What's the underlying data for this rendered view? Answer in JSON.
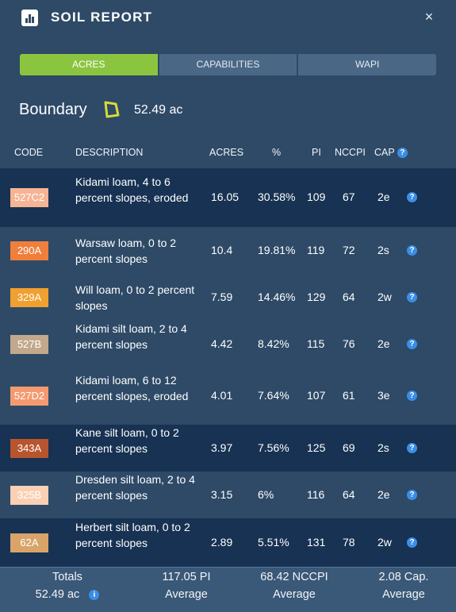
{
  "header": {
    "title": "SOIL REPORT",
    "close_label": "×"
  },
  "tabs": [
    {
      "label": "ACRES",
      "active": true
    },
    {
      "label": "CAPABILITIES",
      "active": false
    },
    {
      "label": "WAPI",
      "active": false
    }
  ],
  "boundary": {
    "label": "Boundary",
    "acres": "52.49 ac",
    "icon": "polygon-boundary-icon",
    "icon_color": "#d9d93a"
  },
  "columns": {
    "code": "CODE",
    "description": "DESCRIPTION",
    "acres": "ACRES",
    "percent": "%",
    "pi": "PI",
    "nccpi": "NCCPI",
    "cap": "CAP"
  },
  "rows": [
    {
      "code": "527C2",
      "color": "#f6b494",
      "description": "Kidami loam, 4 to 6 percent slopes, eroded",
      "acres": "16.05",
      "percent": "30.58%",
      "pi": "109",
      "nccpi": "67",
      "cap": "2e"
    },
    {
      "code": "290A",
      "color": "#f07f3c",
      "description": "Warsaw loam, 0 to 2 percent slopes",
      "acres": "10.4",
      "percent": "19.81%",
      "pi": "119",
      "nccpi": "72",
      "cap": "2s"
    },
    {
      "code": "329A",
      "color": "#f0a030",
      "description": "Will loam, 0 to 2 percent slopes",
      "acres": "7.59",
      "percent": "14.46%",
      "pi": "129",
      "nccpi": "64",
      "cap": "2w"
    },
    {
      "code": "527B",
      "color": "#c2a88c",
      "description": "Kidami silt loam, 2 to 4 percent slopes",
      "acres": "4.42",
      "percent": "8.42%",
      "pi": "115",
      "nccpi": "76",
      "cap": "2e"
    },
    {
      "code": "527D2",
      "color": "#f59a70",
      "description": "Kidami loam, 6 to 12 percent slopes, eroded",
      "acres": "4.01",
      "percent": "7.64%",
      "pi": "107",
      "nccpi": "61",
      "cap": "3e"
    },
    {
      "code": "343A",
      "color": "#b8552e",
      "description": "Kane silt loam, 0 to 2 percent slopes",
      "acres": "3.97",
      "percent": "7.56%",
      "pi": "125",
      "nccpi": "69",
      "cap": "2s"
    },
    {
      "code": "325B",
      "color": "#fad0b4",
      "description": "Dresden silt loam, 2 to 4 percent slopes",
      "acres": "3.15",
      "percent": "6%",
      "pi": "116",
      "nccpi": "64",
      "cap": "2e"
    },
    {
      "code": "62A",
      "color": "#d9a46a",
      "description": "Herbert silt loam, 0 to 2 percent slopes",
      "acres": "2.89",
      "percent": "5.51%",
      "pi": "131",
      "nccpi": "78",
      "cap": "2w"
    }
  ],
  "totals": {
    "label": "Totals",
    "acres": "52.49 ac",
    "pi_value": "117.05 PI",
    "pi_caption": "Average",
    "nccpi_value": "68.42 NCCPI",
    "nccpi_caption": "Average",
    "cap_value": "2.08 Cap.",
    "cap_caption": "Average"
  }
}
